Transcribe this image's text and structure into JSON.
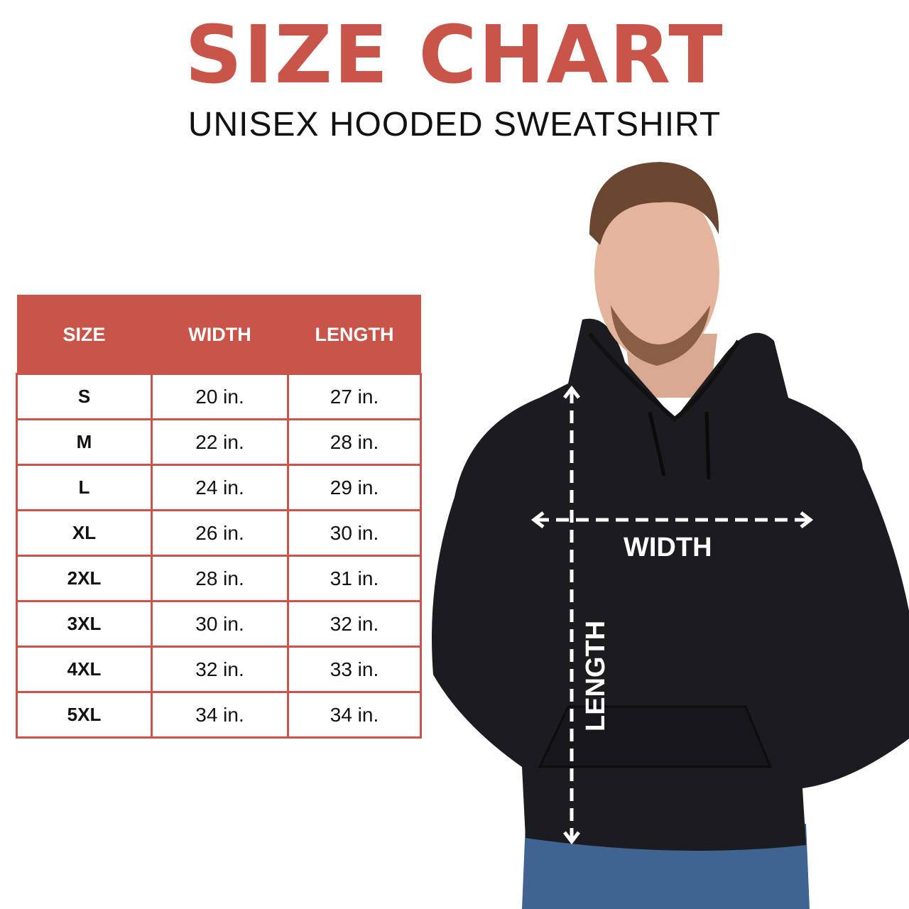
{
  "header": {
    "title": "SIZE CHART",
    "subtitle": "UNISEX HOODED SWEATSHIRT"
  },
  "colors": {
    "accent": "#c9544a",
    "hoodie": "#1c1b1f",
    "text": "#111111"
  },
  "chart_data": {
    "type": "table",
    "columns": [
      "SIZE",
      "WIDTH",
      "LENGTH"
    ],
    "rows": [
      [
        "S",
        "20 in.",
        "27 in."
      ],
      [
        "M",
        "22 in.",
        "28 in."
      ],
      [
        "L",
        "24 in.",
        "29 in."
      ],
      [
        "XL",
        "26 in.",
        "30 in."
      ],
      [
        "2XL",
        "28 in.",
        "31 in."
      ],
      [
        "3XL",
        "30 in.",
        "32 in."
      ],
      [
        "4XL",
        "32 in.",
        "33 in."
      ],
      [
        "5XL",
        "34 in.",
        "34 in."
      ]
    ]
  },
  "figure": {
    "width_label": "WIDTH",
    "length_label": "LENGTH"
  }
}
